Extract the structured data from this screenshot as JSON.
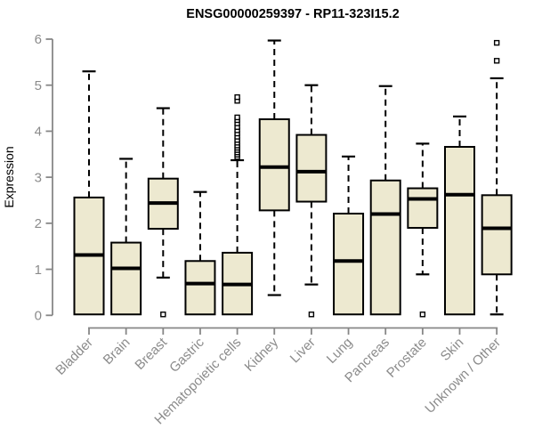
{
  "chart_data": {
    "type": "box",
    "title": "ENSG00000259397 - RP11-323I15.2",
    "ylabel": "Expression",
    "xlabel": "",
    "ylim": [
      0,
      6
    ],
    "yticks": [
      0,
      1,
      2,
      3,
      4,
      5,
      6
    ],
    "grid": false,
    "legend": "none",
    "categories": [
      "Bladder",
      "Brain",
      "Breast",
      "Gastric",
      "Hematopoietic cells",
      "Kidney",
      "Liver",
      "Lung",
      "Pancreas",
      "Prostate",
      "Skin",
      "Unknown / Other"
    ],
    "series": [
      {
        "label": "Bladder",
        "whisker_low": 0.02,
        "q1": 0.02,
        "median": 1.31,
        "q3": 2.56,
        "whisker_high": 5.3,
        "outliers": []
      },
      {
        "label": "Brain",
        "whisker_low": 0.02,
        "q1": 0.02,
        "median": 1.02,
        "q3": 1.58,
        "whisker_high": 3.4,
        "outliers": []
      },
      {
        "label": "Breast",
        "whisker_low": 0.82,
        "q1": 1.88,
        "median": 2.44,
        "q3": 2.97,
        "whisker_high": 4.5,
        "outliers": [
          0.02
        ]
      },
      {
        "label": "Gastric",
        "whisker_low": 0.02,
        "q1": 0.02,
        "median": 0.69,
        "q3": 1.18,
        "whisker_high": 2.68,
        "outliers": []
      },
      {
        "label": "Hematopoietic cells",
        "whisker_low": 0.02,
        "q1": 0.02,
        "median": 0.67,
        "q3": 1.36,
        "whisker_high": 3.37,
        "outliers": [
          3.44,
          3.49,
          3.54,
          3.59,
          3.64,
          3.69,
          3.75,
          3.81,
          3.88,
          3.95,
          4.02,
          4.09,
          4.17,
          4.24,
          4.3,
          4.66,
          4.74
        ]
      },
      {
        "label": "Kidney",
        "whisker_low": 0.44,
        "q1": 2.28,
        "median": 3.22,
        "q3": 4.26,
        "whisker_high": 5.97,
        "outliers": []
      },
      {
        "label": "Liver",
        "whisker_low": 0.67,
        "q1": 2.47,
        "median": 3.12,
        "q3": 3.92,
        "whisker_high": 5.0,
        "outliers": [
          0.02
        ]
      },
      {
        "label": "Lung",
        "whisker_low": 0.02,
        "q1": 0.02,
        "median": 1.18,
        "q3": 2.21,
        "whisker_high": 3.45,
        "outliers": []
      },
      {
        "label": "Pancreas",
        "whisker_low": 0.02,
        "q1": 0.02,
        "median": 2.2,
        "q3": 2.93,
        "whisker_high": 4.98,
        "outliers": []
      },
      {
        "label": "Prostate",
        "whisker_low": 0.89,
        "q1": 1.9,
        "median": 2.53,
        "q3": 2.76,
        "whisker_high": 3.73,
        "outliers": [
          0.02
        ]
      },
      {
        "label": "Skin",
        "whisker_low": 0.02,
        "q1": 0.02,
        "median": 2.62,
        "q3": 3.66,
        "whisker_high": 4.32,
        "outliers": []
      },
      {
        "label": "Unknown / Other",
        "whisker_low": 0.02,
        "q1": 0.89,
        "median": 1.89,
        "q3": 2.61,
        "whisker_high": 5.15,
        "outliers": [
          5.53,
          5.92
        ]
      }
    ],
    "style": {
      "box_fill": "#EDE9D0",
      "box_stroke": "#000000",
      "median_color": "#000000",
      "whisker_color": "#000000",
      "outlier_fill": "#ffffff",
      "outlier_stroke": "#000000",
      "axis_color": "#878787",
      "tick_label_color": "#8B8B8B",
      "title_color": "#000000",
      "background": "#ffffff"
    }
  }
}
